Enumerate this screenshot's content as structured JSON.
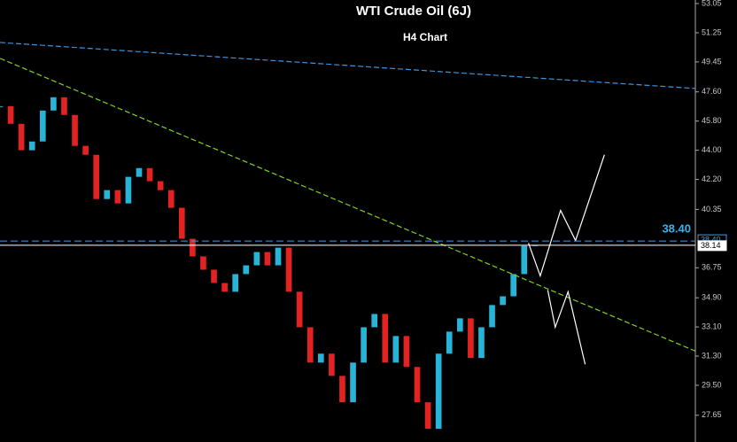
{
  "chart_data": {
    "type": "candlestick",
    "title": "WTI Crude Oil (6J)",
    "subtitle": "H4 Chart",
    "closes": [
      46.72,
      45.63,
      44.0,
      44.54,
      46.45,
      47.27,
      46.18,
      44.27,
      43.72,
      40.99,
      41.54,
      40.72,
      42.36,
      42.9,
      42.09,
      41.54,
      40.45,
      38.54,
      37.45,
      36.63,
      35.81,
      35.27,
      36.36,
      36.9,
      37.72,
      36.9,
      37.99,
      35.27,
      33.08,
      30.9,
      31.45,
      30.08,
      28.45,
      30.9,
      33.08,
      33.9,
      30.9,
      32.54,
      30.63,
      28.45,
      26.81,
      31.45,
      32.81,
      33.63,
      31.18,
      33.08,
      34.45,
      34.99,
      36.36,
      38.1,
      38.14
    ],
    "up_color": "#27b4d6",
    "down_color": "#e32222",
    "xlim": [
      0,
      65
    ],
    "ylim": [
      26.0,
      53.27
    ],
    "yticks": [
      53.05,
      51.25,
      49.45,
      {
        "value": 47.6,
        "label": "47.60"
      },
      {
        "value": 45.8,
        "label": "45.80"
      },
      {
        "value": 44,
        "label": "44.00"
      },
      {
        "value": 42.2,
        "label": "42.20"
      },
      40.35,
      36.75,
      {
        "value": 34.9,
        "label": "34.90"
      },
      {
        "value": 33.1,
        "label": "33.10"
      },
      {
        "value": 31.3,
        "label": "31.30"
      },
      {
        "value": 29.5,
        "label": "29.50"
      },
      27.65
    ],
    "levels": [
      {
        "value": 38.4,
        "label": "38.40",
        "color": "#3d9cf0"
      },
      {
        "value": 38.14,
        "label": "38.14",
        "color": "#ffffff"
      }
    ],
    "lines": [
      {
        "color": "#3a95e0",
        "dashed": true,
        "x": [
          0,
          65
        ],
        "y": [
          50.65,
          47.81
        ]
      },
      {
        "color": "#7ed321",
        "dashed": true,
        "x": [
          0,
          65
        ],
        "y": [
          49.67,
          31.61
        ]
      },
      {
        "color": "#ffffff",
        "dashed": false,
        "x": [
          49.4,
          50.5,
          52.4,
          53.8,
          56.5
        ],
        "y": [
          38.27,
          36.25,
          40.29,
          38.43,
          43.72
        ]
      },
      {
        "color": "#ffffff",
        "dashed": false,
        "x": [
          51.2,
          51.9,
          53.1,
          54.7
        ],
        "y": [
          35.38,
          33.08,
          35.27,
          30.79
        ]
      }
    ]
  }
}
